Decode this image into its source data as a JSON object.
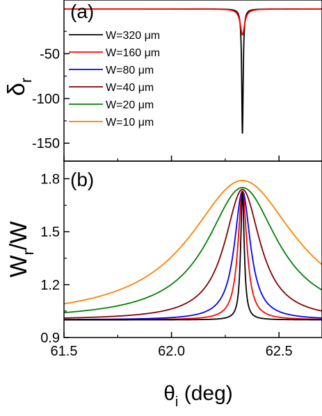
{
  "chart_data": [
    {
      "panel": "(a)",
      "type": "line",
      "ylabel": {
        "main": "δ",
        "sub": "r"
      },
      "xlim": [
        61.5,
        62.7
      ],
      "ylim": [
        -170,
        10
      ],
      "yticks": [
        -50,
        -100,
        -150
      ],
      "ytick_labels": [
        "-50",
        "-100",
        "-150"
      ],
      "legend_position": "top-left",
      "series": [
        {
          "name": "W=320 μm",
          "color": "#000000",
          "x0": 62.33,
          "depth": -140,
          "width": 0.004
        },
        {
          "name": "W=160 μm",
          "color": "#ff0000",
          "x0": 62.33,
          "depth": -29,
          "width": 0.012
        },
        {
          "name": "W=80 μm",
          "color": "#0000ff"
        },
        {
          "name": "W=40 μm",
          "color": "#800000"
        },
        {
          "name": "W=20 μm",
          "color": "#008000"
        },
        {
          "name": "W=10 μm",
          "color": "#ff8000"
        }
      ]
    },
    {
      "panel": "(b)",
      "type": "line",
      "xlabel": {
        "main": "θ",
        "sub": "i",
        "rest": " (deg)"
      },
      "ylabel": {
        "main": "W",
        "sub": "r",
        "rest": "/W"
      },
      "xlim": [
        61.5,
        62.7
      ],
      "ylim": [
        0.9,
        1.9
      ],
      "xticks": [
        61.5,
        62.0,
        62.5
      ],
      "xtick_labels": [
        "61.5",
        "62.0",
        "62.5"
      ],
      "yticks": [
        0.9,
        1.2,
        1.5,
        1.8
      ],
      "ytick_labels": [
        "0.9",
        "1.2",
        "1.5",
        "1.8"
      ],
      "series": [
        {
          "name": "W=320 μm",
          "color": "#000000",
          "x0": 62.33,
          "peak": 1.72,
          "width": 0.01
        },
        {
          "name": "W=160 μm",
          "color": "#ff0000",
          "x0": 62.33,
          "peak": 1.73,
          "width": 0.025
        },
        {
          "name": "W=80 μm",
          "color": "#0000ff",
          "x0": 62.33,
          "peak": 1.73,
          "width": 0.045
        },
        {
          "name": "W=40 μm",
          "color": "#800000",
          "x0": 62.33,
          "peak": 1.74,
          "width": 0.1
        },
        {
          "name": "W=20 μm",
          "color": "#008000",
          "x0": 62.33,
          "peak": 1.75,
          "width": 0.2
        },
        {
          "name": "W=10 μm",
          "color": "#ff8000",
          "x0": 62.33,
          "peak": 1.79,
          "width": 0.3
        }
      ]
    }
  ]
}
